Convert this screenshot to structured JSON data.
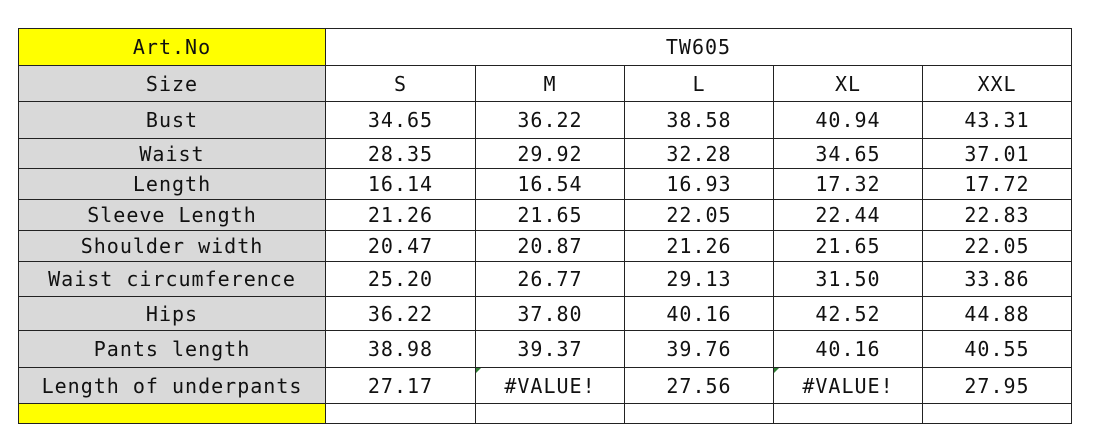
{
  "header": {
    "art_label": "Art.No",
    "art_value": "TW605"
  },
  "size_row": {
    "label": "Size",
    "sizes": [
      "S",
      "M",
      "L",
      "XL",
      "XXL"
    ]
  },
  "rows": [
    {
      "label": "Bust",
      "values": [
        "34.65",
        "36.22",
        "38.58",
        "40.94",
        "43.31"
      ]
    },
    {
      "label": "Waist",
      "values": [
        "28.35",
        "29.92",
        "32.28",
        "34.65",
        "37.01"
      ]
    },
    {
      "label": "Length",
      "values": [
        "16.14",
        "16.54",
        "16.93",
        "17.32",
        "17.72"
      ]
    },
    {
      "label": "Sleeve Length",
      "values": [
        "21.26",
        "21.65",
        "22.05",
        "22.44",
        "22.83"
      ]
    },
    {
      "label": "Shoulder width",
      "values": [
        "20.47",
        "20.87",
        "21.26",
        "21.65",
        "22.05"
      ]
    },
    {
      "label": "Waist circumference",
      "values": [
        "25.20",
        "26.77",
        "29.13",
        "31.50",
        "33.86"
      ]
    },
    {
      "label": "Hips",
      "values": [
        "36.22",
        "37.80",
        "40.16",
        "42.52",
        "44.88"
      ]
    },
    {
      "label": "Pants length",
      "values": [
        "38.98",
        "39.37",
        "39.76",
        "40.16",
        "40.55"
      ]
    },
    {
      "label": "Length of underpants",
      "values": [
        "27.17",
        "#VALUE!",
        "27.56",
        "#VALUE!",
        "27.95"
      ]
    }
  ],
  "colors": {
    "label_bg": "#d9d9d9",
    "highlight": "#ffff00",
    "error_marker": "#2e7d32"
  }
}
